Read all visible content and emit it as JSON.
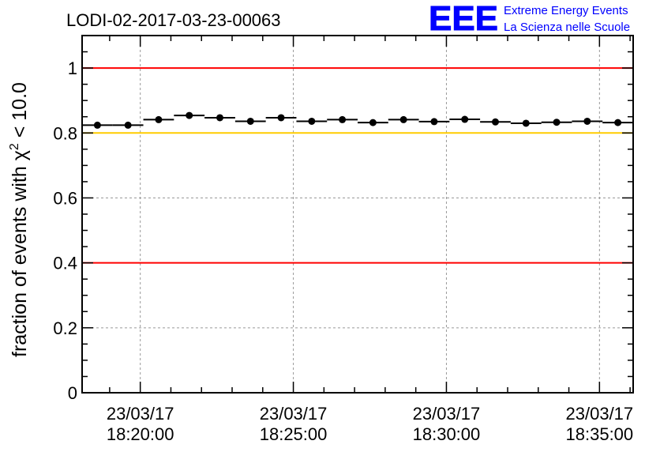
{
  "chart_data": {
    "type": "scatter",
    "title": "LODI-02-2017-03-23-00063",
    "ylabel": "fraction of events with χ² < 10.0",
    "ylabel_main": "fraction of events with ",
    "ylabel_chi": "χ",
    "ylabel_sup": "2",
    "ylabel_tail": " < 10.0",
    "xlabel": "",
    "ylim": [
      0,
      1.1
    ],
    "xlim_minutes_from_1820": [
      -1.9,
      16.1
    ],
    "bin_width_minutes": 1,
    "x_minutes_from_1820": [
      -1.4,
      -0.4,
      0.6,
      1.6,
      2.6,
      3.6,
      4.6,
      5.6,
      6.6,
      7.6,
      8.6,
      9.6,
      10.6,
      11.6,
      12.6,
      13.6,
      14.6,
      15.6
    ],
    "values": [
      0.824,
      0.824,
      0.841,
      0.854,
      0.847,
      0.836,
      0.847,
      0.836,
      0.841,
      0.832,
      0.841,
      0.835,
      0.842,
      0.834,
      0.83,
      0.833,
      0.836,
      0.832
    ],
    "y_ticks": [
      "0",
      "0.2",
      "0.4",
      "0.6",
      "0.8",
      "1"
    ],
    "y_tick_values": [
      0,
      0.2,
      0.4,
      0.6,
      0.8,
      1
    ],
    "x_ticks": [
      {
        "date": "23/03/17",
        "time": "18:20:00",
        "minute": 0
      },
      {
        "date": "23/03/17",
        "time": "18:25:00",
        "minute": 5
      },
      {
        "date": "23/03/17",
        "time": "18:30:00",
        "minute": 10
      },
      {
        "date": "23/03/17",
        "time": "18:35:00",
        "minute": 15
      }
    ],
    "reference_lines": [
      {
        "y": 1.0,
        "color": "#ff0000"
      },
      {
        "y": 0.8,
        "color": "#ffcc00"
      },
      {
        "y": 0.4,
        "color": "#ff0000"
      }
    ],
    "grid": true
  },
  "logo": {
    "text": "EEE",
    "line1": "Extreme Energy Events",
    "line2": "La Scienza nelle Scuole",
    "color": "#0000ff"
  }
}
